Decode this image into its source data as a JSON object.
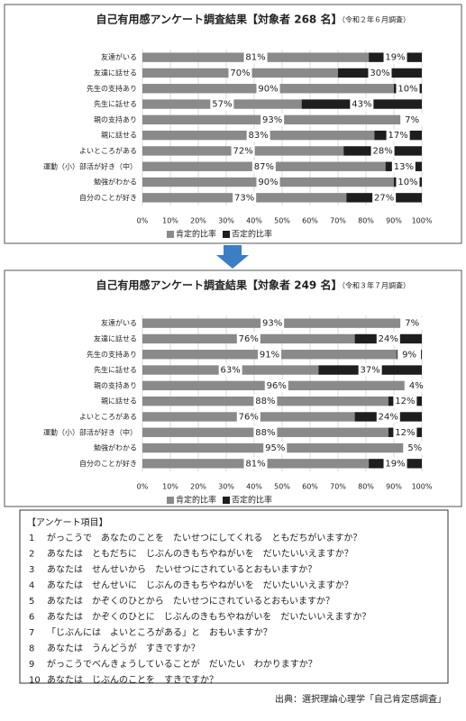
{
  "chart_data": [
    {
      "type": "stacked-bar-horizontal",
      "title": "自己有用感アンケート調査結果【対象者 268 名】",
      "subtitle": "（令和２年６月調査）",
      "categories": [
        "友達がいる",
        "友達に話せる",
        "先生の支持あり",
        "先生に話せる",
        "親の支持あり",
        "親に話せる",
        "よいところがある",
        "運動（小）部活が好き（中）",
        "勉強がわかる",
        "自分のことが好き"
      ],
      "series": [
        {
          "name": "肯定的比率",
          "color": "#8a8a8a",
          "values": [
            81,
            70,
            90,
            57,
            93,
            83,
            72,
            87,
            90,
            73
          ],
          "value_labels": [
            "81%",
            "70%",
            "90%",
            "57%",
            "93%",
            "83%",
            "72%",
            "87%",
            "90%",
            "73%"
          ]
        },
        {
          "name": "否定的比率",
          "color": "#1e1e1e",
          "values": [
            19,
            30,
            10,
            43,
            7,
            17,
            28,
            13,
            10,
            27
          ],
          "value_labels": [
            "19%",
            "30%",
            "10%",
            "43%",
            "7%",
            "17%",
            "28%",
            "13%",
            "10%",
            "27%"
          ]
        }
      ],
      "xlim": [
        0,
        100
      ],
      "xticks": [
        {
          "value": 0,
          "label": "0%"
        },
        {
          "value": 10,
          "label": "10%"
        },
        {
          "value": 20,
          "label": "20%"
        },
        {
          "value": 30,
          "label": "30%"
        },
        {
          "value": 40,
          "label": "40%"
        },
        {
          "value": 50,
          "label": "50%"
        },
        {
          "value": 60,
          "label": "60%"
        },
        {
          "value": 70,
          "label": "70%"
        },
        {
          "value": 80,
          "label": "80%"
        },
        {
          "value": 90,
          "label": "90%"
        },
        {
          "value": 100,
          "label": "100%"
        }
      ],
      "grid": true,
      "legend": "bottom"
    },
    {
      "type": "stacked-bar-horizontal",
      "title": "自己有用感アンケート調査結果【対象者 249 名】",
      "subtitle": "（令和３年７月調査）",
      "categories": [
        "友達がいる",
        "友達に話せる",
        "先生の支持あり",
        "先生に話せる",
        "親の支持あり",
        "親に話せる",
        "よいところがある",
        "運動（小）部活が好き（中）",
        "勉強がわかる",
        "自分のことが好き"
      ],
      "series": [
        {
          "name": "肯定的比率",
          "color": "#8a8a8a",
          "values": [
            93,
            76,
            91,
            63,
            96,
            88,
            76,
            88,
            95,
            81
          ],
          "value_labels": [
            "93%",
            "76%",
            "91%",
            "63%",
            "96%",
            "88%",
            "76%",
            "88%",
            "95%",
            "81%"
          ]
        },
        {
          "name": "否定的比率",
          "color": "#1e1e1e",
          "values": [
            7,
            24,
            9,
            37,
            4,
            12,
            24,
            12,
            5,
            19
          ],
          "value_labels": [
            "7%",
            "24%",
            "9%",
            "37%",
            "4%",
            "12%",
            "24%",
            "12%",
            "5%",
            "19%"
          ]
        }
      ],
      "xlim": [
        0,
        100
      ],
      "xticks": [
        {
          "value": 0,
          "label": "0%"
        },
        {
          "value": 10,
          "label": "10%"
        },
        {
          "value": 20,
          "label": "20%"
        },
        {
          "value": 30,
          "label": "30%"
        },
        {
          "value": 40,
          "label": "40%"
        },
        {
          "value": 50,
          "label": "50%"
        },
        {
          "value": 60,
          "label": "60%"
        },
        {
          "value": 70,
          "label": "70%"
        },
        {
          "value": 80,
          "label": "80%"
        },
        {
          "value": 90,
          "label": "90%"
        },
        {
          "value": 100,
          "label": "100%"
        }
      ],
      "grid": true,
      "legend": "bottom"
    }
  ],
  "survey": {
    "title": "【アンケート項目】",
    "items": [
      {
        "number": "1",
        "text": "がっこうで　あなたのことを　たいせつにしてくれる　ともだちがいますか？"
      },
      {
        "number": "2",
        "text": "あなたは　ともだちに　じぶんのきもちやねがいを　だいたいいえますか？"
      },
      {
        "number": "3",
        "text": "あなたは　せんせいから　たいせつにされているとおもいますか？"
      },
      {
        "number": "4",
        "text": "あなたは　せんせいに　じぶんのきもちやねがいを　だいたいいえますか？"
      },
      {
        "number": "5",
        "text": "あなたは　かぞくのひとから　たいせつにされているとおもいますか？"
      },
      {
        "number": "6",
        "text": "あなたは　かぞくのひとに　じぶんのきもちやねがいを　だいたいいえますか？"
      },
      {
        "number": "7",
        "text": "「じぶんには　よいところがある」と　おもいますか？"
      },
      {
        "number": "8",
        "text": "あなたは　うんどうが　すきですか？"
      },
      {
        "number": "9",
        "text": "がっこうでべんきょうしていることが　だいたい　わかりますか？"
      },
      {
        "number": "10",
        "text": "あなたは　じぶんのことを　すきですか？"
      }
    ]
  },
  "source": "出典：選択理論心理学「自己肯定感調査」"
}
